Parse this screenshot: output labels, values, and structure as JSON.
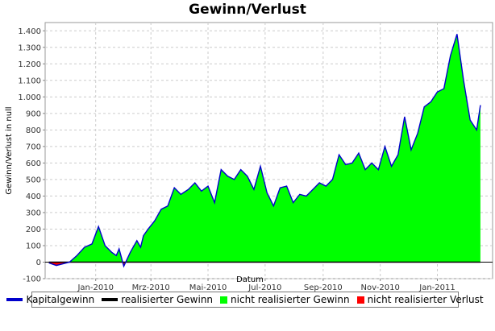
{
  "chart_data": {
    "type": "area",
    "title": "Gewinn/Verlust",
    "xlabel": "Datum",
    "ylabel": "Gewinn/Verlust in null",
    "ylim": [
      -100,
      1450
    ],
    "yticks": [
      -100,
      0,
      100,
      200,
      300,
      400,
      500,
      600,
      700,
      800,
      900,
      1000,
      1100,
      1200,
      1300,
      1400
    ],
    "ytick_labels": [
      "-100",
      "0",
      "100",
      "200",
      "300",
      "400",
      "500",
      "600",
      "700",
      "800",
      "900",
      "1.000",
      "1.100",
      "1.200",
      "1.300",
      "1.400"
    ],
    "xlim": [
      "2009-11-08",
      "2011-03-01"
    ],
    "xticks": [
      "2010-01-01",
      "2010-03-01",
      "2010-05-01",
      "2010-07-01",
      "2010-09-01",
      "2010-11-01",
      "2011-01-01"
    ],
    "xtick_labels": [
      "Jan-2010",
      "Mrz-2010",
      "Mai-2010",
      "Jul-2010",
      "Sep-2010",
      "Nov-2010",
      "Jan-2011"
    ],
    "grid": true,
    "legend_position": "bottom",
    "colors": {
      "kapitalgewinn": "#0000cc",
      "realisierter_gewinn": "#000000",
      "nicht_realisierter_gewinn": "#00ff00",
      "nicht_realisierter_verlust": "#ff0000"
    },
    "series": [
      {
        "name": "Kapitalgewinn",
        "x": [
          "2009-11-12",
          "2009-11-20",
          "2009-11-27",
          "2009-12-04",
          "2009-12-12",
          "2009-12-20",
          "2009-12-28",
          "2010-01-04",
          "2010-01-11",
          "2010-01-18",
          "2010-01-23",
          "2010-01-26",
          "2010-01-31",
          "2010-02-07",
          "2010-02-14",
          "2010-02-18",
          "2010-02-21",
          "2010-02-26",
          "2010-03-05",
          "2010-03-12",
          "2010-03-19",
          "2010-03-26",
          "2010-04-02",
          "2010-04-10",
          "2010-04-17",
          "2010-04-24",
          "2010-05-01",
          "2010-05-08",
          "2010-05-15",
          "2010-05-22",
          "2010-05-29",
          "2010-06-05",
          "2010-06-12",
          "2010-06-19",
          "2010-06-26",
          "2010-07-03",
          "2010-07-10",
          "2010-07-17",
          "2010-07-24",
          "2010-07-31",
          "2010-08-07",
          "2010-08-14",
          "2010-08-21",
          "2010-08-28",
          "2010-09-04",
          "2010-09-11",
          "2010-09-18",
          "2010-09-25",
          "2010-10-02",
          "2010-10-09",
          "2010-10-16",
          "2010-10-23",
          "2010-10-30",
          "2010-11-06",
          "2010-11-13",
          "2010-11-20",
          "2010-11-27",
          "2010-12-04",
          "2010-12-11",
          "2010-12-18",
          "2010-12-25",
          "2011-01-01",
          "2011-01-08",
          "2011-01-15",
          "2011-01-22",
          "2011-01-29",
          "2011-02-05",
          "2011-02-12",
          "2011-02-16"
        ],
        "values": [
          -5,
          -20,
          -10,
          0,
          40,
          90,
          110,
          215,
          100,
          60,
          40,
          80,
          -25,
          60,
          130,
          90,
          160,
          200,
          250,
          320,
          340,
          450,
          410,
          440,
          480,
          430,
          460,
          360,
          560,
          520,
          500,
          560,
          520,
          440,
          580,
          420,
          340,
          450,
          460,
          360,
          410,
          400,
          440,
          480,
          460,
          500,
          650,
          590,
          600,
          660,
          560,
          600,
          560,
          700,
          580,
          650,
          880,
          680,
          780,
          940,
          970,
          1030,
          1050,
          1250,
          1380,
          1100,
          860,
          800,
          950
        ]
      }
    ]
  },
  "legend": {
    "items": [
      "Kapitalgewinn",
      "realisierter Gewinn",
      "nicht realisierter Gewinn",
      "nicht realisierter Verlust"
    ]
  }
}
